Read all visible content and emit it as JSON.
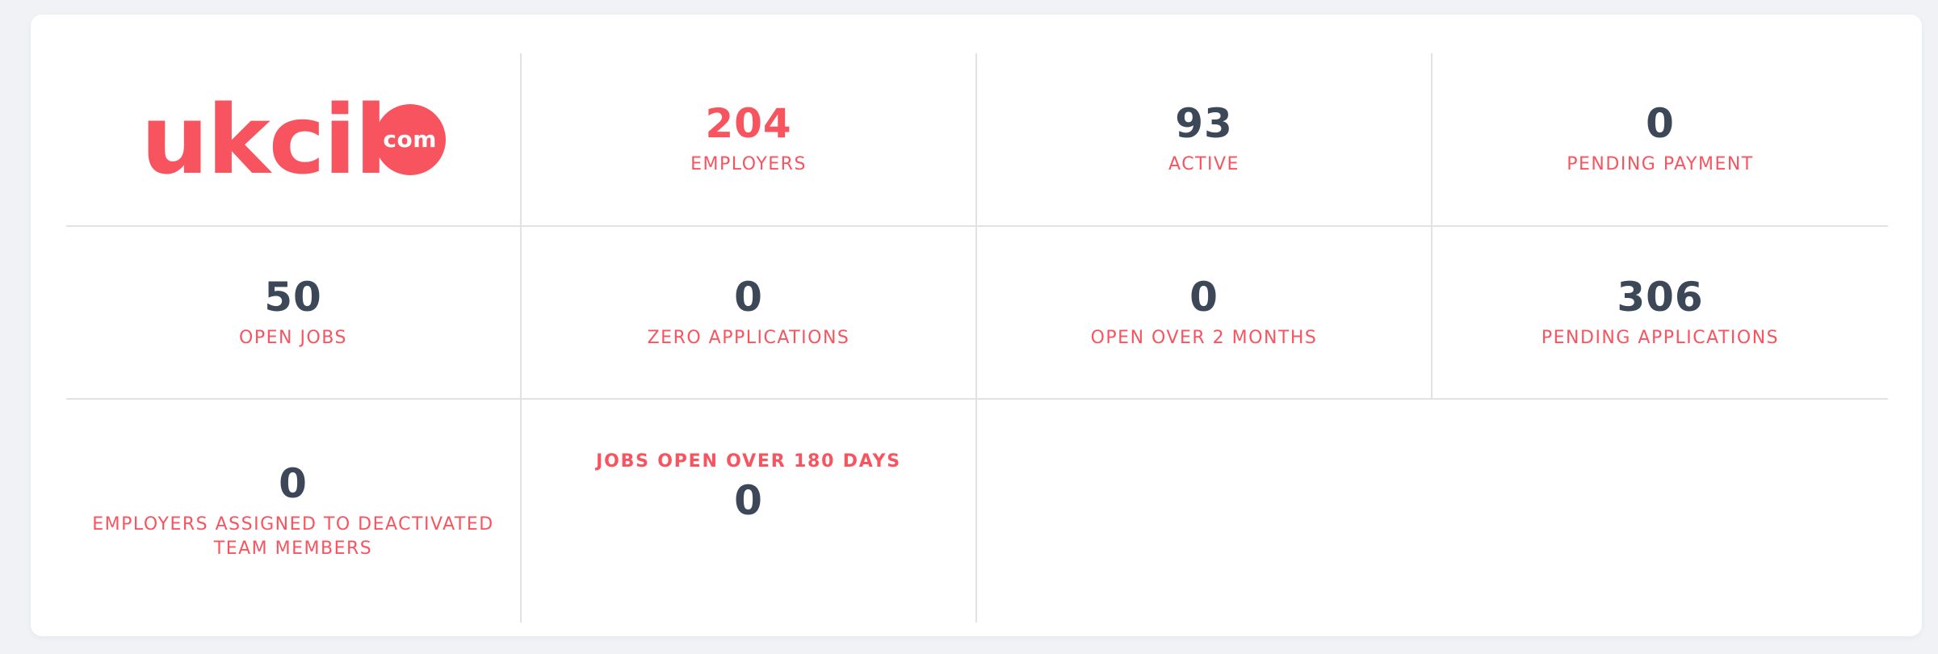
{
  "brand": {
    "logo_text": "ukcil",
    "logo_badge": "com"
  },
  "colors": {
    "accent_red": "#F8545F",
    "number_slate": "#3C4858",
    "divider_gray": "#E2E2E2",
    "page_background": "#F0F2F6",
    "card_background": "#FFFFFF"
  },
  "stats": [
    {
      "value": "204",
      "label": "EMPLOYERS",
      "value_color": "accent"
    },
    {
      "value": "93",
      "label": "ACTIVE",
      "value_color": "slate"
    },
    {
      "value": "0",
      "label": "PENDING PAYMENT",
      "value_color": "slate"
    },
    {
      "value": "50",
      "label": "OPEN JOBS",
      "value_color": "slate"
    },
    {
      "value": "0",
      "label": "ZERO APPLICATIONS",
      "value_color": "slate"
    },
    {
      "value": "0",
      "label": "OPEN OVER 2 MONTHS",
      "value_color": "slate"
    },
    {
      "value": "306",
      "label": "PENDING APPLICATIONS",
      "value_color": "slate"
    },
    {
      "value": "0",
      "label": "EMPLOYERS ASSIGNED TO DEACTIVATED TEAM MEMBERS",
      "value_color": "slate",
      "label_position": "below"
    },
    {
      "value": "0",
      "label": "JOBS OPEN OVER 180 DAYS",
      "value_color": "slate",
      "label_position": "above",
      "label_bold": true
    }
  ]
}
